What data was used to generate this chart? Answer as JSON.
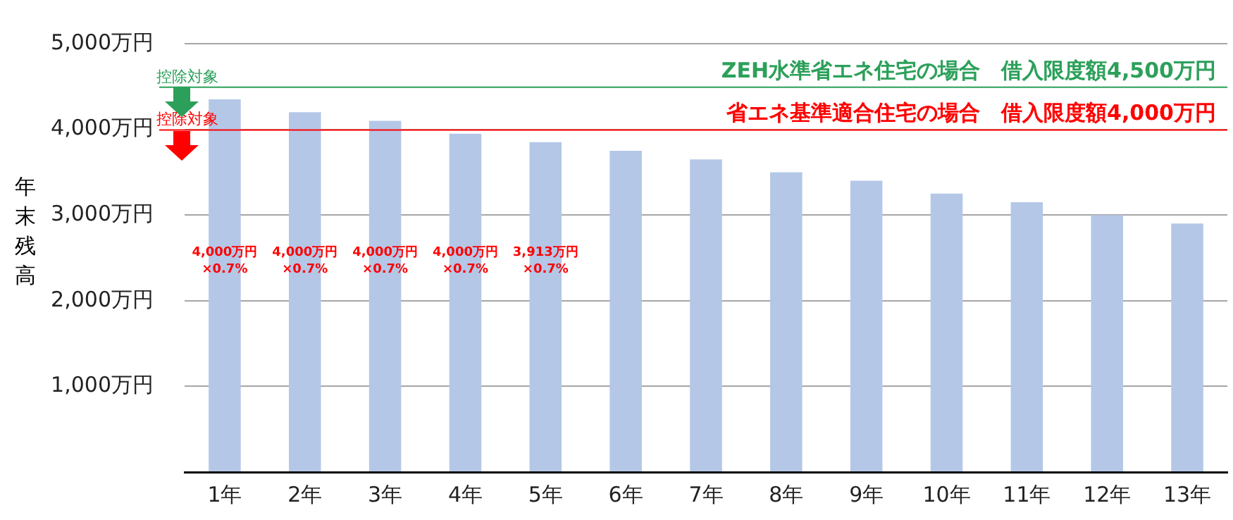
{
  "chart_data": {
    "type": "bar",
    "ylabel": "年末残高",
    "categories": [
      "1年",
      "2年",
      "3年",
      "4年",
      "5年",
      "6年",
      "7年",
      "8年",
      "9年",
      "10年",
      "11年",
      "12年",
      "13年"
    ],
    "values": [
      4350,
      4200,
      4100,
      3950,
      3850,
      3750,
      3650,
      3500,
      3400,
      3250,
      3150,
      3000,
      2900
    ],
    "color": "#b4c7e7",
    "ylim": [
      0,
      5000
    ],
    "yticks": [
      {
        "value": 0,
        "label": null
      },
      {
        "value": 1000,
        "label": "1,000万円"
      },
      {
        "value": 2000,
        "label": "2,000万円"
      },
      {
        "value": 3000,
        "label": "3,000万円"
      },
      {
        "value": 4000,
        "label": "4,000万円"
      },
      {
        "value": 5000,
        "label": "5,000万円"
      }
    ],
    "grid": "y",
    "ref_lines": [
      {
        "axis": "y",
        "value": 4500,
        "label": "ZEH水準省エネ住宅の場合　借入限度額4,500万円",
        "color": "#2ca05a"
      },
      {
        "axis": "y",
        "value": 4000,
        "label": "省エネ基準適合住宅の場合　借入限度額4,000万円",
        "color": "#ff0000"
      }
    ],
    "annotations": [
      {
        "text": "控除対象",
        "y": 4500
      },
      {
        "text": "控除対象",
        "y": 4000
      },
      "4,000万円\n×0.7%",
      "4,000万円\n×0.7%",
      "4,000万円\n×0.7%",
      "4,000万円\n×0.7%",
      "3,913万円\n×0.7%"
    ]
  }
}
